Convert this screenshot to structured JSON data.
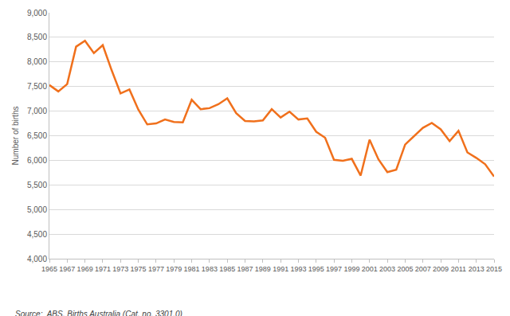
{
  "chart_data": {
    "type": "line",
    "y_label": "Number of births",
    "annotation": "Source:  ABS, Births Australia (Cat. no. 3301.0)",
    "x": [
      1965,
      1966,
      1967,
      1968,
      1969,
      1970,
      1971,
      1972,
      1973,
      1974,
      1975,
      1976,
      1977,
      1978,
      1979,
      1980,
      1981,
      1982,
      1983,
      1984,
      1985,
      1986,
      1987,
      1988,
      1989,
      1990,
      1991,
      1992,
      1993,
      1994,
      1995,
      1996,
      1997,
      1998,
      1999,
      2000,
      2001,
      2002,
      2003,
      2004,
      2005,
      2006,
      2007,
      2008,
      2009,
      2010,
      2011,
      2012,
      2013,
      2014,
      2015
    ],
    "values": [
      7530,
      7400,
      7550,
      8310,
      8430,
      8180,
      8340,
      7830,
      7360,
      7440,
      7030,
      6730,
      6750,
      6830,
      6780,
      6770,
      7230,
      7040,
      7060,
      7140,
      7260,
      6960,
      6800,
      6790,
      6810,
      7040,
      6870,
      6990,
      6830,
      6850,
      6580,
      6460,
      6010,
      5990,
      6030,
      5690,
      6420,
      6020,
      5760,
      5810,
      6320,
      6490,
      6660,
      6760,
      6630,
      6390,
      6600,
      6160,
      6050,
      5920,
      5670
    ],
    "color": "#f0701c",
    "xlim": [
      1965,
      2015
    ],
    "xticks": [
      1965,
      1967,
      1969,
      1971,
      1973,
      1975,
      1977,
      1979,
      1981,
      1983,
      1985,
      1987,
      1989,
      1991,
      1993,
      1995,
      1997,
      1999,
      2001,
      2003,
      2005,
      2007,
      2009,
      2011,
      2013,
      2015
    ],
    "ylim": [
      4000,
      9000
    ],
    "yticks": [
      {
        "value": 4000,
        "label": "4,000"
      },
      {
        "value": 4500,
        "label": "4,500"
      },
      {
        "value": 5000,
        "label": "5,000"
      },
      {
        "value": 5500,
        "label": "5,500"
      },
      {
        "value": 6000,
        "label": "6,000"
      },
      {
        "value": 6500,
        "label": "6,500"
      },
      {
        "value": 7000,
        "label": "7,000"
      },
      {
        "value": 7500,
        "label": "7,500"
      },
      {
        "value": 8000,
        "label": "8,000"
      },
      {
        "value": 8500,
        "label": "8,500"
      },
      {
        "value": 9000,
        "label": "9,000"
      }
    ],
    "grid": true
  }
}
